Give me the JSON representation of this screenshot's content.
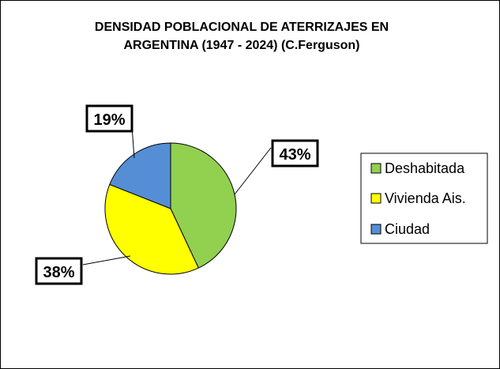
{
  "chart_data": {
    "type": "pie",
    "title_lines": [
      "DENSIDAD POBLACIONAL DE ATERRIZAJES EN",
      "ARGENTINA (1947 - 2024) (C.Ferguson)"
    ],
    "categories": [
      "Deshabitada",
      "Vivienda Ais.",
      "Ciudad"
    ],
    "values": [
      43,
      38,
      19
    ],
    "labels": [
      "43%",
      "38%",
      "19%"
    ],
    "colors": [
      "#92D050",
      "#FFFF00",
      "#558ED5"
    ],
    "legend_position": "right"
  }
}
